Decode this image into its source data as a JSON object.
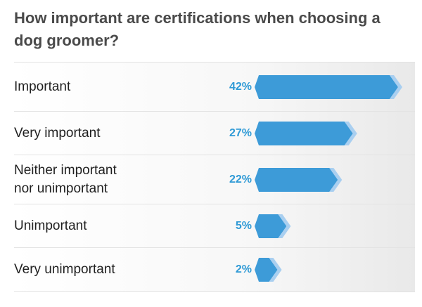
{
  "title": "How important are certifications when choosing a dog groomer?",
  "colors": {
    "bar": "#3d9bd8",
    "bar_tip": "#a9cff0",
    "percent_text": "#2f9ad6"
  },
  "chart_data": {
    "type": "bar",
    "orientation": "horizontal",
    "title": "How important are certifications when choosing a dog groomer?",
    "categories": [
      "Important",
      "Very important",
      "Neither important\nnor unimportant",
      "Unimportant",
      "Very unimportant"
    ],
    "values": [
      42,
      27,
      22,
      5,
      2
    ],
    "value_labels": [
      "42%",
      "27%",
      "22%",
      "5%",
      "2%"
    ],
    "unit": "%",
    "xlim": [
      0,
      42
    ],
    "grid": false,
    "legend": "none"
  }
}
